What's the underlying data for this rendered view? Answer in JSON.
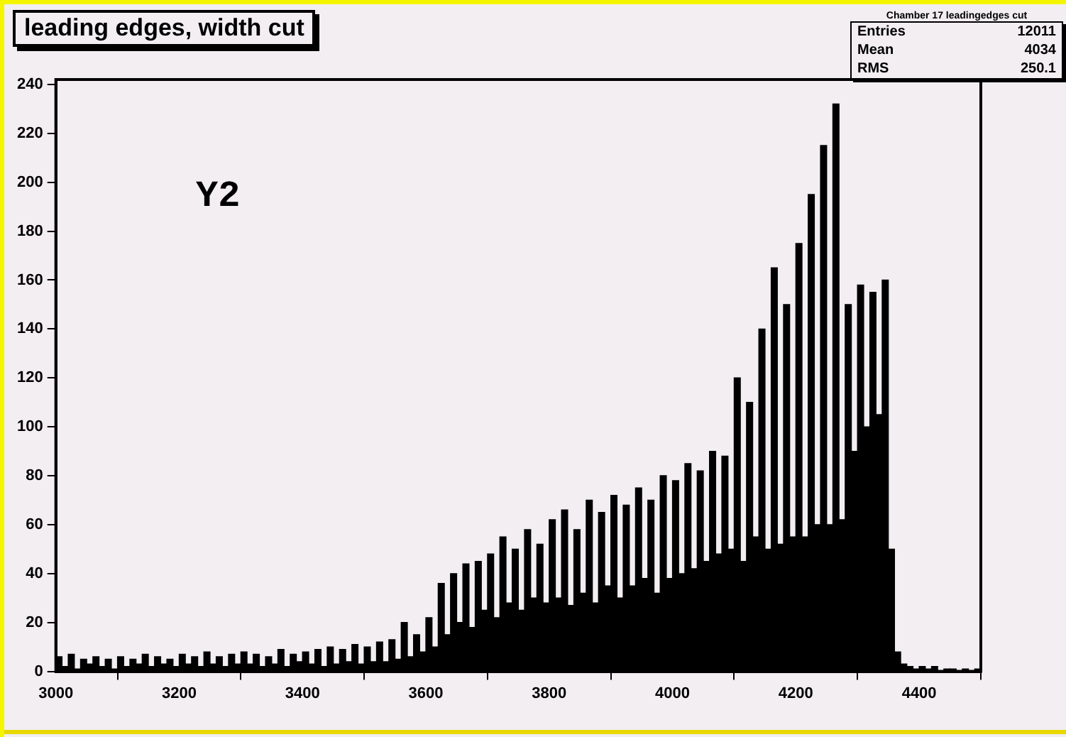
{
  "chart_data": {
    "type": "histogram",
    "title": "leading edges, width cut",
    "annotations": [
      "Y2",
      "Chamber 17 leadingedges cut",
      "Entries",
      "12011",
      "Mean",
      "4034",
      "RMS",
      "250.1"
    ],
    "bins": [
      3000,
      3010,
      3020,
      3030,
      3040,
      3050,
      3060,
      3070,
      3080,
      3090,
      3100,
      3110,
      3120,
      3130,
      3140,
      3150,
      3160,
      3170,
      3180,
      3190,
      3200,
      3210,
      3220,
      3230,
      3240,
      3250,
      3260,
      3270,
      3280,
      3290,
      3300,
      3310,
      3320,
      3330,
      3340,
      3350,
      3360,
      3370,
      3380,
      3390,
      3400,
      3410,
      3420,
      3430,
      3440,
      3450,
      3460,
      3470,
      3480,
      3490,
      3500,
      3510,
      3520,
      3530,
      3540,
      3550,
      3560,
      3570,
      3580,
      3590,
      3600,
      3610,
      3620,
      3630,
      3640,
      3650,
      3660,
      3670,
      3680,
      3690,
      3700,
      3710,
      3720,
      3730,
      3740,
      3750,
      3760,
      3770,
      3780,
      3790,
      3800,
      3810,
      3820,
      3830,
      3840,
      3850,
      3860,
      3870,
      3880,
      3890,
      3900,
      3910,
      3920,
      3930,
      3940,
      3950,
      3960,
      3970,
      3980,
      3990,
      4000,
      4010,
      4020,
      4030,
      4040,
      4050,
      4060,
      4070,
      4080,
      4090,
      4100,
      4110,
      4120,
      4130,
      4140,
      4150,
      4160,
      4170,
      4180,
      4190,
      4200,
      4210,
      4220,
      4230,
      4240,
      4250,
      4260,
      4270,
      4280,
      4290,
      4300,
      4310,
      4320,
      4330,
      4340,
      4350,
      4360,
      4370,
      4380,
      4390,
      4400,
      4410,
      4420,
      4430,
      4440,
      4450,
      4460,
      4470,
      4480,
      4490,
      4500
    ],
    "values": [
      6,
      2,
      7,
      1,
      5,
      3,
      6,
      2,
      5,
      1,
      6,
      2,
      5,
      3,
      7,
      2,
      6,
      3,
      5,
      2,
      7,
      3,
      6,
      2,
      8,
      3,
      6,
      2,
      7,
      3,
      8,
      3,
      7,
      2,
      6,
      3,
      9,
      2,
      7,
      4,
      8,
      3,
      9,
      2,
      10,
      3,
      9,
      4,
      11,
      3,
      10,
      4,
      12,
      4,
      13,
      5,
      20,
      6,
      15,
      8,
      22,
      10,
      36,
      15,
      40,
      20,
      44,
      18,
      45,
      25,
      48,
      22,
      55,
      28,
      50,
      25,
      58,
      30,
      52,
      28,
      62,
      30,
      66,
      27,
      58,
      32,
      70,
      28,
      65,
      35,
      72,
      30,
      68,
      35,
      75,
      38,
      70,
      32,
      80,
      38,
      78,
      40,
      85,
      42,
      82,
      45,
      90,
      48,
      88,
      50,
      120,
      45,
      110,
      55,
      140,
      50,
      165,
      52,
      150,
      55,
      175,
      55,
      195,
      60,
      215,
      60,
      232,
      62,
      150,
      90,
      158,
      100,
      155,
      105,
      160,
      50,
      8,
      3,
      2,
      1,
      2,
      1,
      2,
      0,
      1,
      1,
      0,
      1,
      0,
      1
    ],
    "color": "#000000",
    "xlim": [
      3000,
      4500
    ],
    "xticks": [
      3000,
      3200,
      3400,
      3600,
      3800,
      4000,
      4200,
      4400
    ],
    "ylim": [
      0,
      242
    ],
    "yticks": [
      0,
      20,
      40,
      60,
      80,
      100,
      120,
      140,
      160,
      180,
      200,
      220,
      240
    ],
    "grid": false,
    "legend": false
  }
}
